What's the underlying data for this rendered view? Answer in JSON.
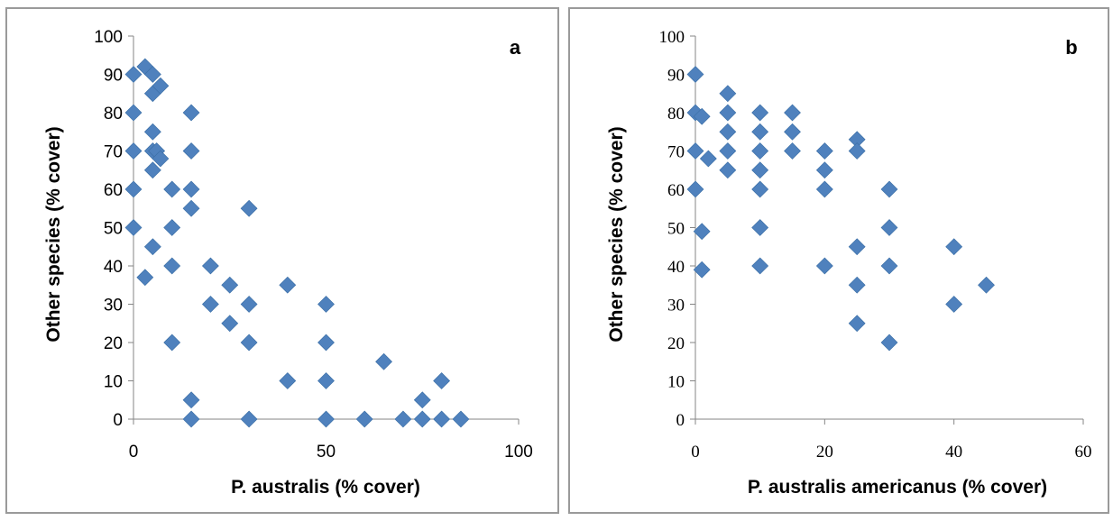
{
  "chart_data": [
    {
      "type": "scatter",
      "panel_label": "a",
      "xlabel": "P. australis (% cover)",
      "ylabel": "Other species (% cover)",
      "xlim": [
        0,
        100
      ],
      "ylim": [
        0,
        100
      ],
      "xticks": [
        "0",
        "50",
        "100"
      ],
      "yticks": [
        "0",
        "10",
        "20",
        "30",
        "40",
        "50",
        "60",
        "70",
        "80",
        "90",
        "100"
      ],
      "marker_color": "#4f81bd",
      "grid": false,
      "points": [
        [
          0,
          90
        ],
        [
          0,
          80
        ],
        [
          0,
          70
        ],
        [
          0,
          60
        ],
        [
          0,
          50
        ],
        [
          3,
          92
        ],
        [
          5,
          90
        ],
        [
          5,
          85
        ],
        [
          7,
          87
        ],
        [
          5,
          75
        ],
        [
          5,
          70
        ],
        [
          6,
          70
        ],
        [
          7,
          68
        ],
        [
          5,
          65
        ],
        [
          10,
          60
        ],
        [
          10,
          50
        ],
        [
          5,
          45
        ],
        [
          3,
          37
        ],
        [
          10,
          40
        ],
        [
          10,
          20
        ],
        [
          15,
          80
        ],
        [
          15,
          70
        ],
        [
          15,
          60
        ],
        [
          15,
          55
        ],
        [
          15,
          5
        ],
        [
          15,
          0
        ],
        [
          20,
          40
        ],
        [
          20,
          30
        ],
        [
          25,
          35
        ],
        [
          25,
          25
        ],
        [
          30,
          55
        ],
        [
          30,
          30
        ],
        [
          30,
          20
        ],
        [
          30,
          0
        ],
        [
          40,
          35
        ],
        [
          40,
          10
        ],
        [
          50,
          30
        ],
        [
          50,
          20
        ],
        [
          50,
          10
        ],
        [
          50,
          0
        ],
        [
          60,
          0
        ],
        [
          65,
          15
        ],
        [
          70,
          0
        ],
        [
          75,
          5
        ],
        [
          75,
          0
        ],
        [
          80,
          10
        ],
        [
          80,
          0
        ],
        [
          85,
          0
        ]
      ]
    },
    {
      "type": "scatter",
      "panel_label": "b",
      "xlabel": "P. australis americanus (% cover)",
      "ylabel": "Other species (% cover)",
      "xlim": [
        0,
        60
      ],
      "ylim": [
        0,
        100
      ],
      "xticks": [
        "0",
        "20",
        "40",
        "60"
      ],
      "yticks": [
        "0",
        "10",
        "20",
        "30",
        "40",
        "50",
        "60",
        "70",
        "80",
        "90",
        "100"
      ],
      "marker_color": "#4f81bd",
      "grid": false,
      "points": [
        [
          0,
          90
        ],
        [
          0,
          80
        ],
        [
          1,
          79
        ],
        [
          0,
          70
        ],
        [
          2,
          68
        ],
        [
          0,
          60
        ],
        [
          1,
          49
        ],
        [
          1,
          39
        ],
        [
          5,
          85
        ],
        [
          5,
          80
        ],
        [
          5,
          75
        ],
        [
          5,
          70
        ],
        [
          5,
          65
        ],
        [
          10,
          80
        ],
        [
          10,
          75
        ],
        [
          10,
          70
        ],
        [
          10,
          65
        ],
        [
          10,
          60
        ],
        [
          10,
          50
        ],
        [
          10,
          40
        ],
        [
          15,
          80
        ],
        [
          15,
          75
        ],
        [
          15,
          70
        ],
        [
          20,
          70
        ],
        [
          20,
          65
        ],
        [
          20,
          60
        ],
        [
          20,
          40
        ],
        [
          25,
          73
        ],
        [
          25,
          70
        ],
        [
          25,
          45
        ],
        [
          25,
          35
        ],
        [
          25,
          25
        ],
        [
          30,
          60
        ],
        [
          30,
          50
        ],
        [
          30,
          40
        ],
        [
          30,
          20
        ],
        [
          40,
          45
        ],
        [
          40,
          30
        ],
        [
          45,
          35
        ]
      ]
    }
  ]
}
